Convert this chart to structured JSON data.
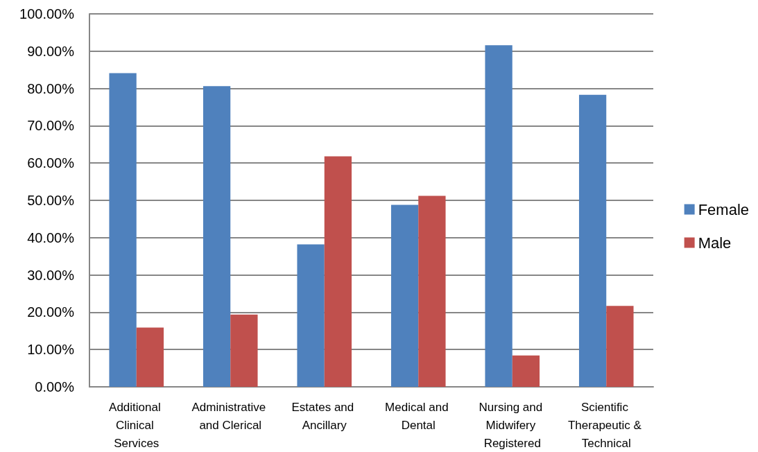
{
  "chart_data": {
    "type": "bar",
    "categories": [
      "Additional Clinical Services",
      "Administrative and Clerical",
      "Estates and Ancillary",
      "Medical and Dental",
      "Nursing and Midwifery Registered",
      "Scientific Therapeutic & Technical"
    ],
    "series": [
      {
        "name": "Female",
        "color": "#4f81bd",
        "values": [
          84.1,
          80.6,
          38.2,
          48.8,
          91.6,
          78.3
        ]
      },
      {
        "name": "Male",
        "color": "#c0504d",
        "values": [
          15.9,
          19.4,
          61.8,
          51.2,
          8.4,
          21.7
        ]
      }
    ],
    "ylim": [
      0,
      100
    ],
    "yticks": [
      {
        "value": 0,
        "label": "0.00%"
      },
      {
        "value": 10,
        "label": "10.00%"
      },
      {
        "value": 20,
        "label": "20.00%"
      },
      {
        "value": 30,
        "label": "30.00%"
      },
      {
        "value": 40,
        "label": "40.00%"
      },
      {
        "value": 50,
        "label": "50.00%"
      },
      {
        "value": 60,
        "label": "60.00%"
      },
      {
        "value": 70,
        "label": "70.00%"
      },
      {
        "value": 80,
        "label": "80.00%"
      },
      {
        "value": 90,
        "label": "90.00%"
      },
      {
        "value": 100,
        "label": "100.00%"
      }
    ],
    "grid": "y",
    "legend": "right"
  }
}
